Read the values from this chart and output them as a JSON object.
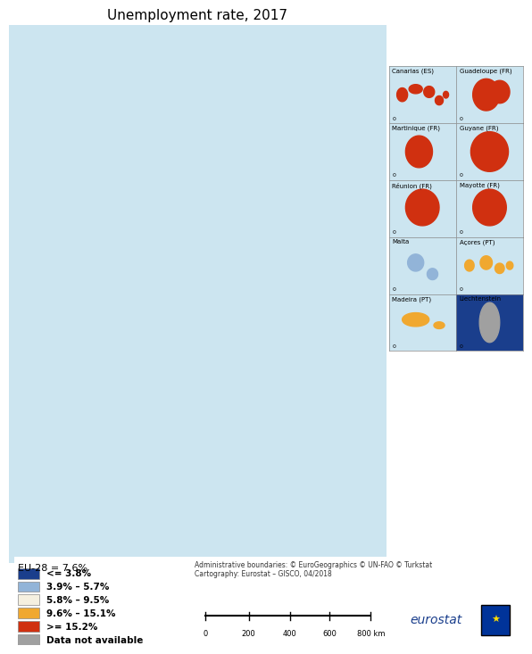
{
  "title": "Unemployment rate, 2017",
  "background_color": "#cce5f0",
  "map_background": "#cce5f0",
  "land_default": "#f5f0e8",
  "eu28_text": "EU-28 = 7.6%",
  "legend_entries": [
    {
      "label": "<= 3.8%",
      "color": "#1a3e8c"
    },
    {
      "label": "3.9% – 5.7%",
      "color": "#92b4d8"
    },
    {
      "label": "5.8% – 9.5%",
      "color": "#f5f0e0"
    },
    {
      "label": "9.6% – 15.1%",
      "color": "#f0a830"
    },
    {
      "label": ">= 15.2%",
      "color": "#d03010"
    },
    {
      "label": "Data not available",
      "color": "#a0a0a0"
    }
  ],
  "inset_labels": [
    "Canarias (ES)",
    "Guadeloupe (FR)",
    "Martinique (FR)",
    "Guyane (FR)",
    "Réunion (FR)",
    "Mayotte (FR)",
    "Malta",
    "Açores (PT)",
    "Madeira (PT)",
    "Liechtenstein"
  ],
  "attribution": "Administrative boundaries: © EuroGeographics © UN-FAO © Turkstat\nCartography: Eurostat – GISCO, 04/2018",
  "scale_bar_label": "0    200  400  600   800 km",
  "eurostat_logo_text": "eurostat",
  "title_fontsize": 11,
  "legend_fontsize": 8,
  "colors": {
    "dark_blue": "#1a3e8c",
    "light_blue": "#92b4d8",
    "cream": "#f5f0e0",
    "orange": "#f0a830",
    "red_orange": "#d03010",
    "gray": "#a0a0a0",
    "water": "#cce5f0",
    "frame": "#ffffff"
  }
}
